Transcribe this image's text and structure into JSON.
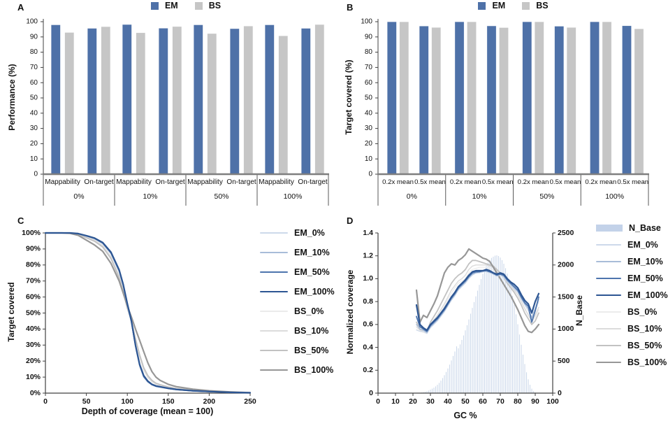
{
  "chart_data": [
    {
      "panel": "A",
      "type": "bar",
      "ylabel": "Performance (%)",
      "ylim": [
        0,
        100
      ],
      "y_ticks": [
        0,
        10,
        20,
        30,
        40,
        50,
        60,
        70,
        80,
        90,
        100
      ],
      "group_labels": [
        "0%",
        "10%",
        "50%",
        "100%"
      ],
      "category_labels": [
        "Mappability",
        "On-target"
      ],
      "series": [
        {
          "name": "EM",
          "color": "#4e71a8",
          "values": [
            98,
            95.7,
            98.2,
            95.8,
            98,
            95.5,
            98,
            95.7
          ]
        },
        {
          "name": "BS",
          "color": "#c6c6c6",
          "values": [
            93,
            96.8,
            92.8,
            96.9,
            92.3,
            97.2,
            90.8,
            98.2
          ]
        }
      ]
    },
    {
      "panel": "B",
      "type": "bar",
      "ylabel": "Target covered (%)",
      "ylim": [
        0,
        100
      ],
      "y_ticks": [
        0,
        10,
        20,
        30,
        40,
        50,
        60,
        70,
        80,
        90,
        100
      ],
      "group_labels": [
        "0%",
        "10%",
        "50%",
        "100%"
      ],
      "category_labels": [
        "0.2x mean",
        "0.5x mean"
      ],
      "series": [
        {
          "name": "EM",
          "color": "#4e71a8",
          "values": [
            100,
            97.2,
            100,
            97.3,
            100,
            97.1,
            100,
            97.4
          ]
        },
        {
          "name": "BS",
          "color": "#c6c6c6",
          "values": [
            100,
            96.3,
            100,
            96.2,
            100,
            96.3,
            100,
            95.4
          ]
        }
      ]
    },
    {
      "panel": "C",
      "type": "line",
      "xlabel": "Depth of coverage (mean = 100)",
      "ylabel": "Target covered",
      "xlim": [
        0,
        250
      ],
      "x_ticks": [
        0,
        50,
        100,
        150,
        200,
        250
      ],
      "ylim": [
        0,
        100
      ],
      "y_ticks": [
        0,
        10,
        20,
        30,
        40,
        50,
        60,
        70,
        80,
        90,
        100
      ],
      "y_tick_labels": [
        "0%",
        "10%",
        "20%",
        "30%",
        "40%",
        "50%",
        "60%",
        "70%",
        "80%",
        "90%",
        "100%"
      ],
      "x": [
        0,
        20,
        30,
        40,
        50,
        60,
        70,
        80,
        90,
        95,
        100,
        105,
        110,
        115,
        120,
        125,
        130,
        135,
        140,
        150,
        160,
        180,
        200,
        225,
        250
      ],
      "series": [
        {
          "name": "EM_0%",
          "color": "#cdd9ea",
          "w": 1.1,
          "values": [
            100,
            100,
            100,
            99.4,
            97.9,
            96.2,
            93.2,
            86.8,
            75.5,
            66.5,
            54.5,
            43.8,
            28.8,
            16.8,
            9.8,
            6.8,
            5,
            4,
            3.5,
            2.7,
            2,
            1.3,
            0.8,
            0.4,
            0.1
          ]
        },
        {
          "name": "EM_10%",
          "color": "#a8bcd8",
          "w": 1.4,
          "values": [
            100,
            100,
            100,
            99.5,
            98,
            96.4,
            93.4,
            87.2,
            76,
            67,
            55,
            44,
            29,
            17,
            10,
            7,
            5.2,
            4.2,
            3.7,
            2.8,
            2.1,
            1.4,
            0.9,
            0.4,
            0.2
          ]
        },
        {
          "name": "EM_50%",
          "color": "#4d74ad",
          "w": 1.8,
          "values": [
            100,
            100,
            100,
            99.5,
            98.2,
            96.6,
            93.7,
            87.6,
            76.5,
            67.5,
            55.5,
            44.5,
            29.5,
            17.5,
            10.5,
            7.2,
            5.3,
            4.3,
            3.8,
            2.9,
            2.2,
            1.4,
            0.9,
            0.5,
            0.2
          ]
        },
        {
          "name": "EM_100%",
          "color": "#2d5693",
          "w": 2.2,
          "values": [
            100,
            100,
            100,
            99.6,
            98.3,
            96.8,
            94,
            88,
            77,
            68,
            56,
            45,
            30,
            18,
            11,
            7.5,
            5.5,
            4.5,
            4,
            3,
            2.3,
            1.5,
            1,
            0.5,
            0.2
          ]
        },
        {
          "name": "BS_0%",
          "color": "#ebebeb",
          "w": 1.1,
          "values": [
            100,
            100,
            100,
            99.3,
            97.6,
            95.7,
            92.3,
            85.5,
            73.5,
            64.5,
            54,
            45,
            33,
            22,
            14,
            9.5,
            7,
            5.5,
            4.8,
            3.5,
            2.6,
            1.7,
            1.1,
            0.5,
            0.2
          ]
        },
        {
          "name": "BS_10%",
          "color": "#dcdcdc",
          "w": 1.4,
          "values": [
            100,
            100,
            100,
            99.2,
            97.4,
            95.4,
            92,
            85,
            73,
            64,
            53.5,
            44.8,
            33.5,
            23,
            15,
            10,
            7.4,
            5.8,
            5,
            3.7,
            2.7,
            1.8,
            1.1,
            0.5,
            0.2
          ]
        },
        {
          "name": "BS_50%",
          "color": "#c2c2c2",
          "w": 1.8,
          "values": [
            100,
            100,
            99.9,
            99,
            97,
            94.8,
            91.2,
            84,
            72,
            63.5,
            53,
            45,
            34,
            24,
            16,
            11,
            8,
            6.2,
            5.3,
            3.9,
            2.9,
            1.9,
            1.2,
            0.6,
            0.2
          ]
        },
        {
          "name": "BS_100%",
          "color": "#979797",
          "w": 2.2,
          "values": [
            100,
            100,
            99.8,
            98.5,
            95.5,
            92.5,
            88.5,
            81,
            70,
            62.5,
            54.5,
            47.5,
            40,
            33,
            26,
            19,
            13.5,
            10,
            8,
            5.5,
            4,
            2.5,
            1.5,
            0.8,
            0.3
          ]
        }
      ]
    },
    {
      "panel": "D",
      "type": "combo",
      "xlabel": "GC %",
      "ylabel": "Normalized coverage",
      "y2label": "N_Base",
      "xlim": [
        0,
        100
      ],
      "x_ticks": [
        0,
        10,
        20,
        30,
        40,
        50,
        60,
        70,
        80,
        90,
        100
      ],
      "ylim": [
        0,
        1.4
      ],
      "y_ticks": [
        0,
        0.2,
        0.4,
        0.6,
        0.8,
        1.0,
        1.2,
        1.4
      ],
      "y_tick_labels": [
        "0",
        "0.2",
        "0.4",
        "0.6",
        "0.8",
        "1.0",
        "1.2",
        "1.4"
      ],
      "y2lim": [
        0,
        2500
      ],
      "y2_ticks": [
        0,
        500,
        1000,
        1500,
        2000,
        2500
      ],
      "y2_tick_labels": [
        "0",
        "500",
        "1000",
        "1500",
        "2000",
        "2500"
      ],
      "hist": {
        "name": "N_Base",
        "color": "#cdd9eb",
        "legend_color": "#c3d2e9",
        "bin_start": 24,
        "bin_step": 1,
        "values": [
          5,
          10,
          15,
          20,
          30,
          40,
          55,
          70,
          85,
          105,
          130,
          160,
          195,
          235,
          280,
          330,
          385,
          445,
          510,
          580,
          650,
          730,
          700,
          760,
          830,
          900,
          980,
          1060,
          1150,
          1240,
          1330,
          1420,
          1510,
          1600,
          1690,
          1780,
          1860,
          1930,
          1990,
          2040,
          2080,
          2110,
          2130,
          2145,
          2150,
          2140,
          2115,
          2075,
          2020,
          1950,
          1865,
          1765,
          1650,
          1520,
          1380,
          1230,
          1075,
          915,
          755,
          600,
          455,
          325,
          215,
          130,
          70,
          30,
          10,
          3
        ]
      },
      "x": [
        22,
        24,
        26,
        28,
        30,
        32,
        34,
        36,
        38,
        40,
        42,
        44,
        46,
        48,
        50,
        52,
        54,
        56,
        58,
        60,
        62,
        64,
        66,
        68,
        70,
        72,
        74,
        76,
        78,
        80,
        82,
        84,
        86,
        88,
        90,
        92
      ],
      "series": [
        {
          "name": "EM_0%",
          "color": "#cdd9ea",
          "w": 1.1,
          "values": [
            0.55,
            0.54,
            0.54,
            0.52,
            0.57,
            0.6,
            0.63,
            0.67,
            0.71,
            0.76,
            0.81,
            0.85,
            0.9,
            0.93,
            0.96,
            1.0,
            1.03,
            1.05,
            1.05,
            1.06,
            1.06,
            1.05,
            1.04,
            1.02,
            1.03,
            1.01,
            0.97,
            0.94,
            0.91,
            0.88,
            0.82,
            0.77,
            0.72,
            0.64,
            0.72,
            0.8
          ]
        },
        {
          "name": "EM_10%",
          "color": "#a8bcd8",
          "w": 1.4,
          "values": [
            0.6,
            0.56,
            0.55,
            0.53,
            0.58,
            0.61,
            0.64,
            0.68,
            0.72,
            0.77,
            0.82,
            0.86,
            0.91,
            0.94,
            0.97,
            1.01,
            1.04,
            1.05,
            1.06,
            1.06,
            1.07,
            1.06,
            1.04,
            1.03,
            1.04,
            1.02,
            0.98,
            0.95,
            0.92,
            0.89,
            0.83,
            0.78,
            0.74,
            0.66,
            0.74,
            0.82
          ]
        },
        {
          "name": "EM_50%",
          "color": "#4d74ad",
          "w": 1.8,
          "values": [
            0.67,
            0.58,
            0.56,
            0.54,
            0.59,
            0.62,
            0.65,
            0.69,
            0.73,
            0.78,
            0.83,
            0.87,
            0.92,
            0.95,
            0.98,
            1.02,
            1.05,
            1.06,
            1.06,
            1.07,
            1.07,
            1.06,
            1.05,
            1.03,
            1.04,
            1.03,
            0.99,
            0.96,
            0.93,
            0.9,
            0.84,
            0.79,
            0.76,
            0.62,
            0.72,
            0.84
          ]
        },
        {
          "name": "EM_100%",
          "color": "#2d5693",
          "w": 2.2,
          "values": [
            0.77,
            0.6,
            0.57,
            0.55,
            0.6,
            0.63,
            0.66,
            0.7,
            0.74,
            0.79,
            0.84,
            0.88,
            0.93,
            0.96,
            0.99,
            1.03,
            1.06,
            1.07,
            1.07,
            1.07,
            1.08,
            1.07,
            1.05,
            1.04,
            1.05,
            1.04,
            1.0,
            0.97,
            0.95,
            0.92,
            0.86,
            0.81,
            0.78,
            0.7,
            0.8,
            0.87
          ]
        },
        {
          "name": "BS_0%",
          "color": "#ebebeb",
          "w": 1.1,
          "values": [
            0.56,
            0.54,
            0.53,
            0.52,
            0.58,
            0.62,
            0.66,
            0.71,
            0.76,
            0.82,
            0.87,
            0.92,
            0.96,
            0.98,
            1.0,
            1.05,
            1.08,
            1.09,
            1.1,
            1.1,
            1.1,
            1.09,
            1.08,
            1.06,
            1.04,
            1.01,
            0.97,
            0.93,
            0.9,
            0.86,
            0.8,
            0.74,
            0.69,
            0.62,
            0.66,
            0.73
          ]
        },
        {
          "name": "BS_10%",
          "color": "#dcdcdc",
          "w": 1.4,
          "values": [
            0.58,
            0.55,
            0.54,
            0.53,
            0.59,
            0.64,
            0.68,
            0.73,
            0.78,
            0.84,
            0.9,
            0.94,
            0.98,
            1.0,
            1.03,
            1.08,
            1.11,
            1.12,
            1.12,
            1.12,
            1.12,
            1.11,
            1.1,
            1.07,
            1.05,
            1.02,
            0.98,
            0.94,
            0.9,
            0.86,
            0.8,
            0.74,
            0.68,
            0.63,
            0.68,
            0.75
          ]
        },
        {
          "name": "BS_50%",
          "color": "#c2c2c2",
          "w": 1.8,
          "values": [
            0.62,
            0.56,
            0.55,
            0.54,
            0.62,
            0.67,
            0.72,
            0.78,
            0.84,
            0.9,
            0.96,
            1.0,
            1.03,
            1.05,
            1.08,
            1.13,
            1.16,
            1.16,
            1.15,
            1.14,
            1.13,
            1.12,
            1.11,
            1.08,
            1.05,
            1.01,
            0.96,
            0.92,
            0.88,
            0.83,
            0.77,
            0.7,
            0.65,
            0.6,
            0.63,
            0.7
          ]
        },
        {
          "name": "BS_100%",
          "color": "#979797",
          "w": 2.2,
          "values": [
            0.9,
            0.62,
            0.68,
            0.66,
            0.72,
            0.78,
            0.85,
            0.95,
            1.05,
            1.1,
            1.13,
            1.12,
            1.16,
            1.18,
            1.21,
            1.26,
            1.24,
            1.22,
            1.2,
            1.18,
            1.17,
            1.15,
            1.1,
            1.05,
            1.0,
            0.95,
            0.9,
            0.85,
            0.79,
            0.73,
            0.66,
            0.59,
            0.54,
            0.53,
            0.56,
            0.6
          ]
        }
      ]
    }
  ]
}
